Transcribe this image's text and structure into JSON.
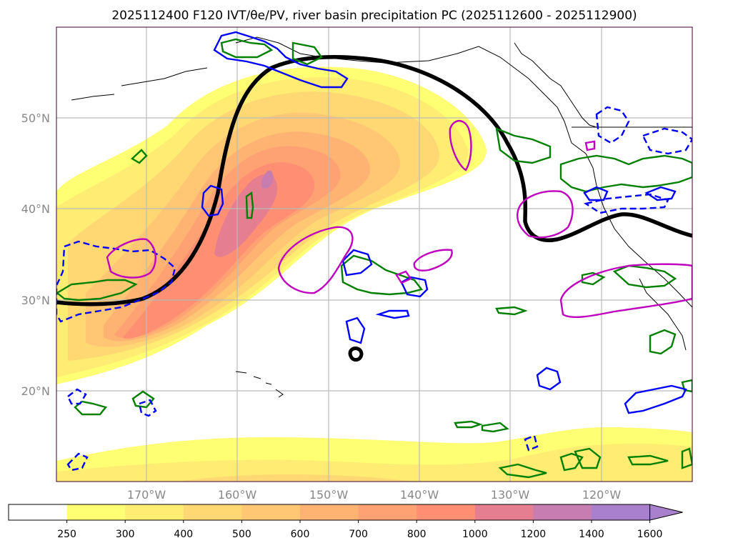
{
  "title": "2025112400 F120 IVT/θe/PV, river basin precipitation PC (2025112600 - 2025112900)",
  "chart_data": {
    "type": "map_contour",
    "title": "2025112400 F120 IVT/θe/PV, river basin precipitation PC (2025112600 - 2025112900)",
    "lat_ticks": [
      "50°N",
      "40°N",
      "30°N",
      "20°N"
    ],
    "lon_ticks": [
      "170°W",
      "160°W",
      "150°W",
      "140°W",
      "130°W",
      "120°W"
    ],
    "lat_values": [
      50,
      40,
      30,
      20
    ],
    "lon_values": [
      -170,
      -160,
      -150,
      -140,
      -130,
      -120
    ],
    "xlim": [
      -180,
      -110
    ],
    "ylim": [
      10,
      60
    ],
    "colorbar": {
      "levels": [
        "250",
        "300",
        "400",
        "500",
        "600",
        "700",
        "800",
        "1000",
        "1200",
        "1400",
        "1600"
      ],
      "level_values": [
        250,
        300,
        400,
        500,
        600,
        700,
        800,
        1000,
        1200,
        1400,
        1600
      ],
      "colors": [
        "#ffffff",
        "#ffff73",
        "#ffec73",
        "#ffd873",
        "#ffc673",
        "#ffb373",
        "#ffa273",
        "#ff8f73",
        "#e47e90",
        "#c77db0",
        "#a880cb"
      ],
      "extend": "max"
    },
    "ivt_max_level": 1200,
    "pv_contour": "2 PVU black contour",
    "overlays": [
      "green contours",
      "blue contours",
      "blue dashed contours",
      "magenta hatched contours"
    ]
  }
}
